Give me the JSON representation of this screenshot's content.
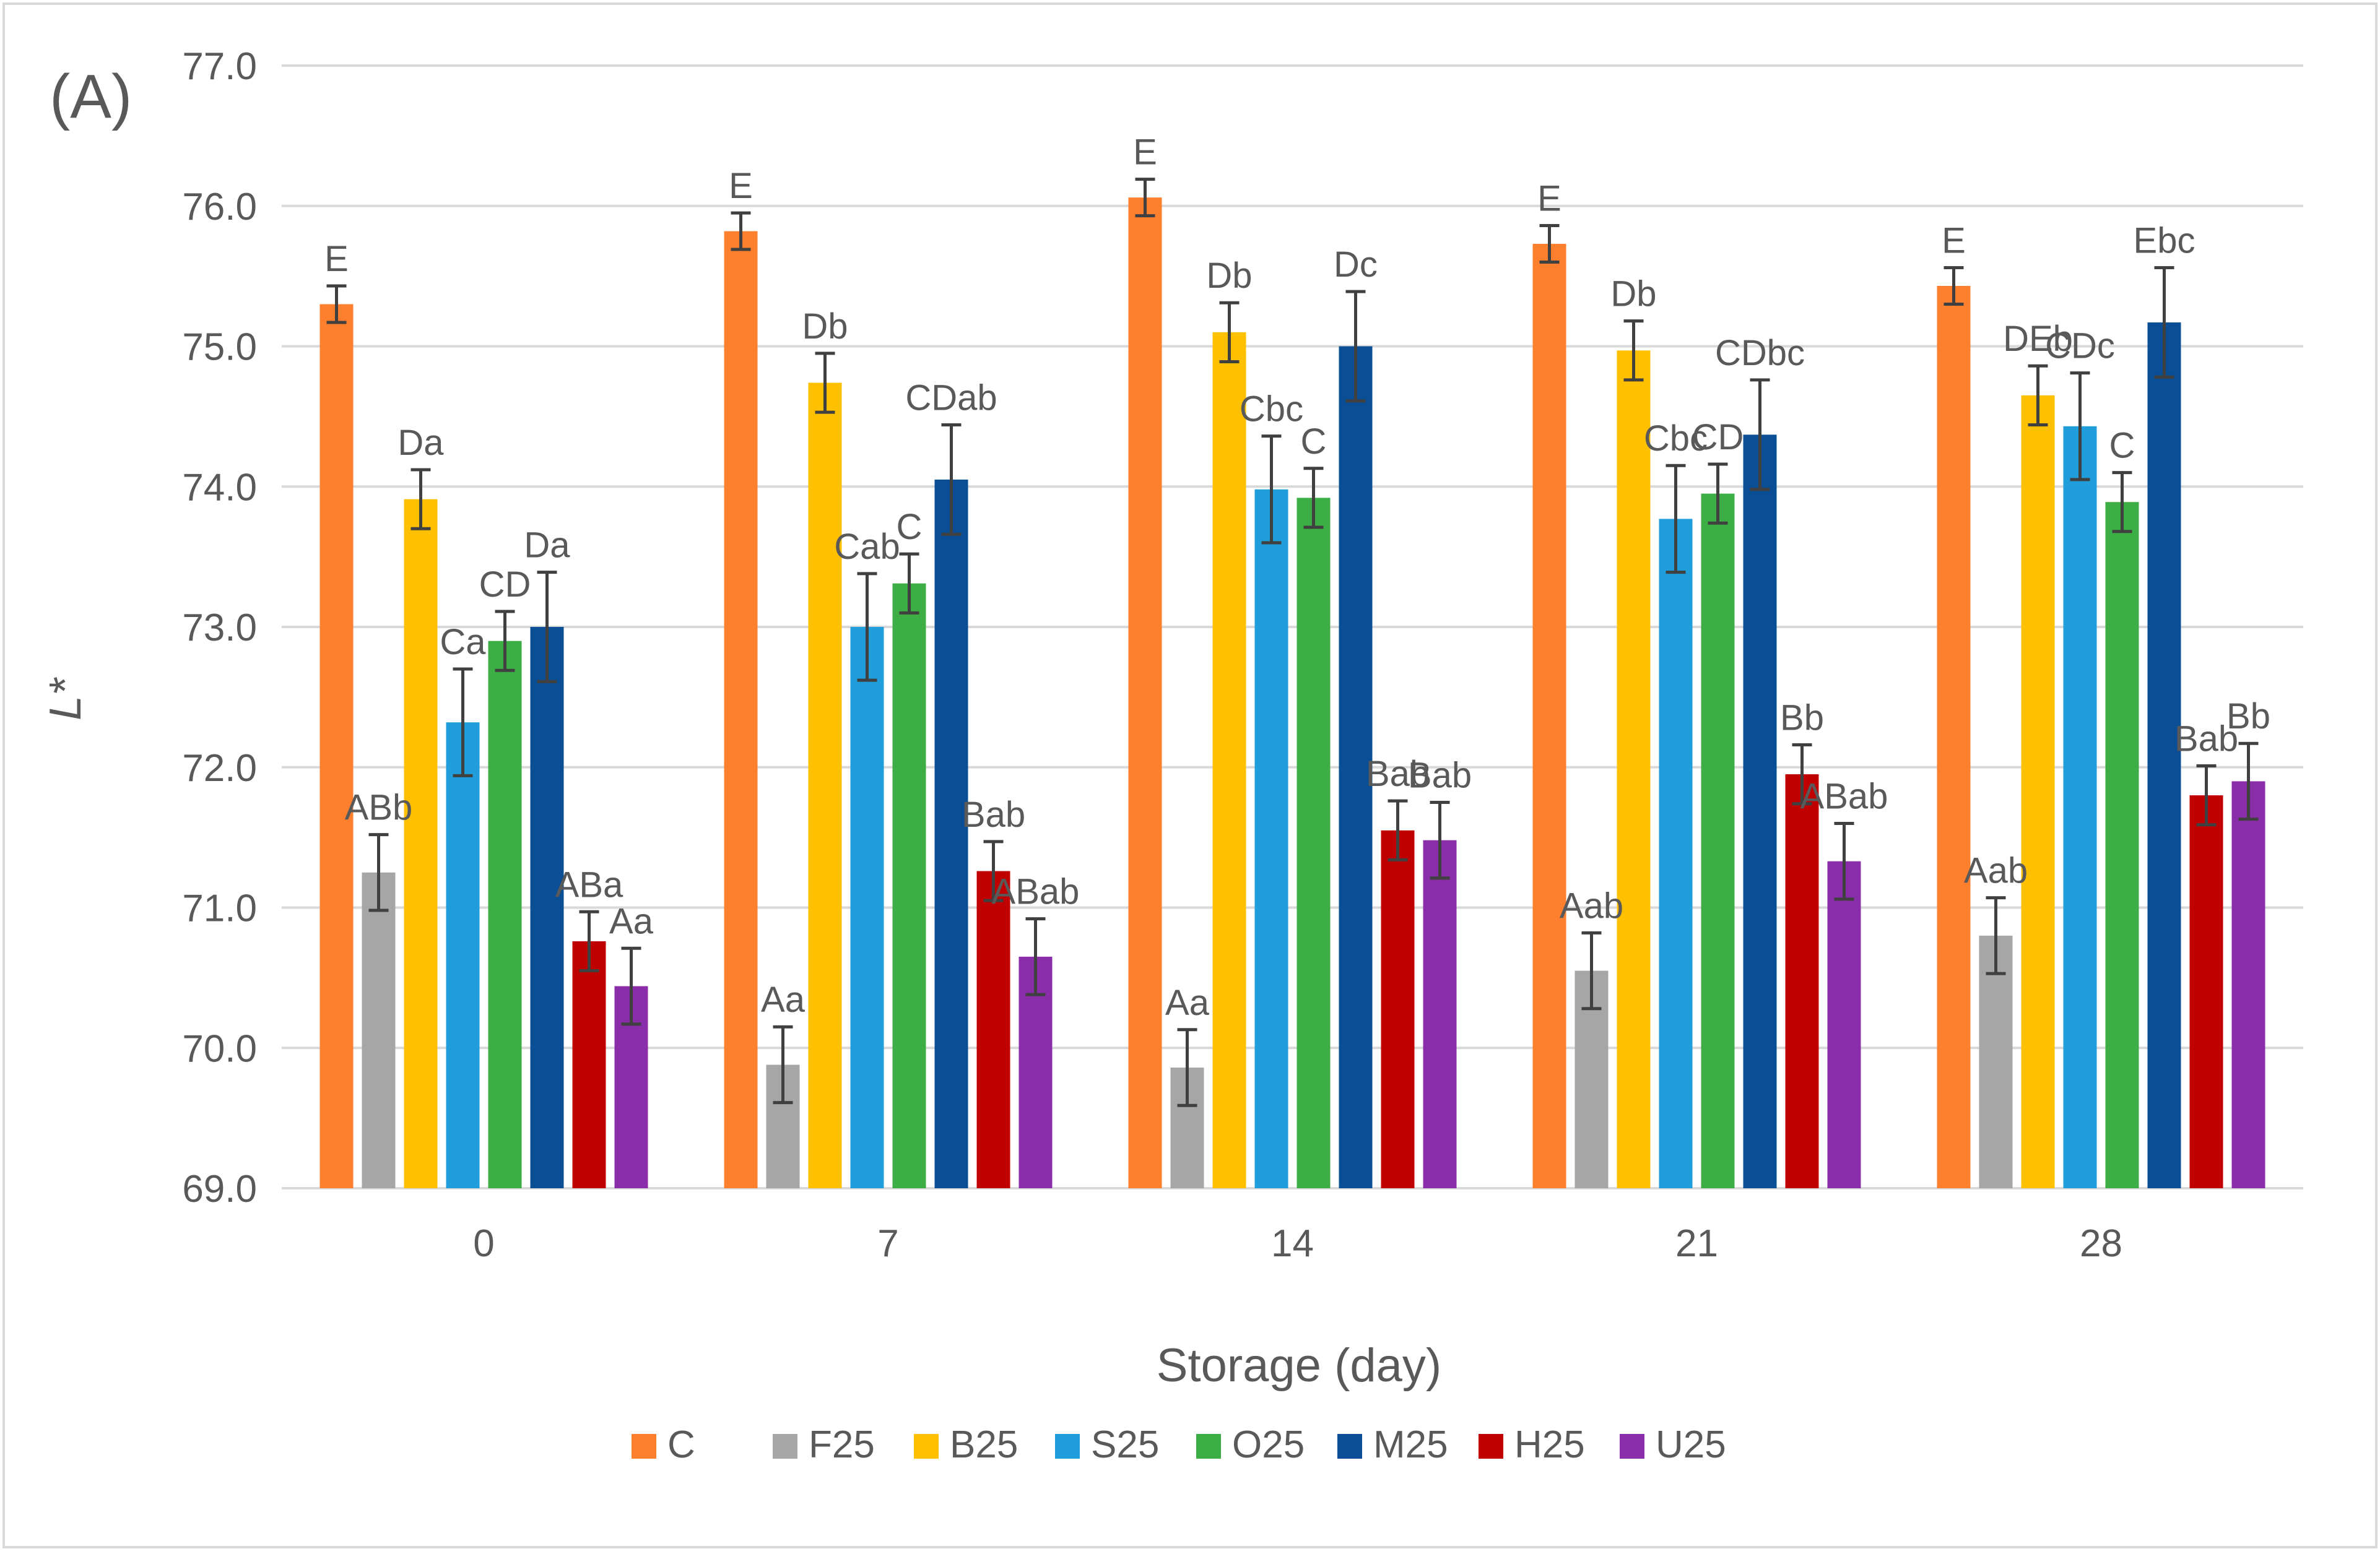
{
  "chart_data": {
    "type": "bar",
    "panel_label": "(A)",
    "title": "",
    "xlabel": "Storage (day)",
    "ylabel": "L*",
    "ylim": [
      69.0,
      77.0
    ],
    "yticks": [
      "69.0",
      "70.0",
      "71.0",
      "72.0",
      "73.0",
      "74.0",
      "75.0",
      "76.0",
      "77.0"
    ],
    "grid": true,
    "legend_position": "bottom",
    "categories": [
      "0",
      "7",
      "14",
      "21",
      "28"
    ],
    "series": [
      {
        "name": "C",
        "color": "#fe7f2d",
        "values": [
          75.3,
          75.82,
          76.06,
          75.73,
          75.43
        ],
        "errors": [
          0.13,
          0.13,
          0.13,
          0.13,
          0.13
        ],
        "labels": [
          "E",
          "E",
          "E",
          "E",
          "E"
        ]
      },
      {
        "name": "F25",
        "color": "#a6a6a6",
        "values": [
          71.25,
          69.88,
          69.86,
          70.55,
          70.8
        ],
        "errors": [
          0.27,
          0.27,
          0.27,
          0.27,
          0.27
        ],
        "labels": [
          "ABb",
          "Aa",
          "Aa",
          "Aab",
          "Aab"
        ]
      },
      {
        "name": "B25",
        "color": "#ffc000",
        "values": [
          73.91,
          74.74,
          75.1,
          74.97,
          74.65
        ],
        "errors": [
          0.21,
          0.21,
          0.21,
          0.21,
          0.21
        ],
        "labels": [
          "Da",
          "Db",
          "Db",
          "Db",
          "DEb"
        ]
      },
      {
        "name": "S25",
        "color": "#1f9edb",
        "values": [
          72.32,
          73.0,
          73.98,
          73.77,
          74.43
        ],
        "errors": [
          0.38,
          0.38,
          0.38,
          0.38,
          0.38
        ],
        "labels": [
          "Ca",
          "Cab",
          "Cbc",
          "Cbc",
          "CDc"
        ]
      },
      {
        "name": "O25",
        "color": "#3cae45",
        "values": [
          72.9,
          73.31,
          73.92,
          73.95,
          73.89
        ],
        "errors": [
          0.21,
          0.21,
          0.21,
          0.21,
          0.21
        ],
        "labels": [
          "CD",
          "C",
          "C",
          "CD",
          "C"
        ]
      },
      {
        "name": "M25",
        "color": "#0a4f96",
        "values": [
          73.0,
          74.05,
          75.0,
          74.37,
          75.17
        ],
        "errors": [
          0.39,
          0.39,
          0.39,
          0.39,
          0.39
        ],
        "labels": [
          "Da",
          "CDab",
          "Dc",
          "CDbc",
          "Ebc"
        ]
      },
      {
        "name": "H25",
        "color": "#c00000",
        "values": [
          70.76,
          71.26,
          71.55,
          71.95,
          71.8
        ],
        "errors": [
          0.21,
          0.21,
          0.21,
          0.21,
          0.21
        ],
        "labels": [
          "ABa",
          "Bab",
          "Bab",
          "Bb",
          "Bab"
        ]
      },
      {
        "name": "U25",
        "color": "#8a2da8",
        "values": [
          70.44,
          70.65,
          71.48,
          71.33,
          71.9
        ],
        "errors": [
          0.27,
          0.27,
          0.27,
          0.27,
          0.27
        ],
        "labels": [
          "Aa",
          "ABab",
          "Bab",
          "ABab",
          "Bb"
        ]
      }
    ]
  }
}
